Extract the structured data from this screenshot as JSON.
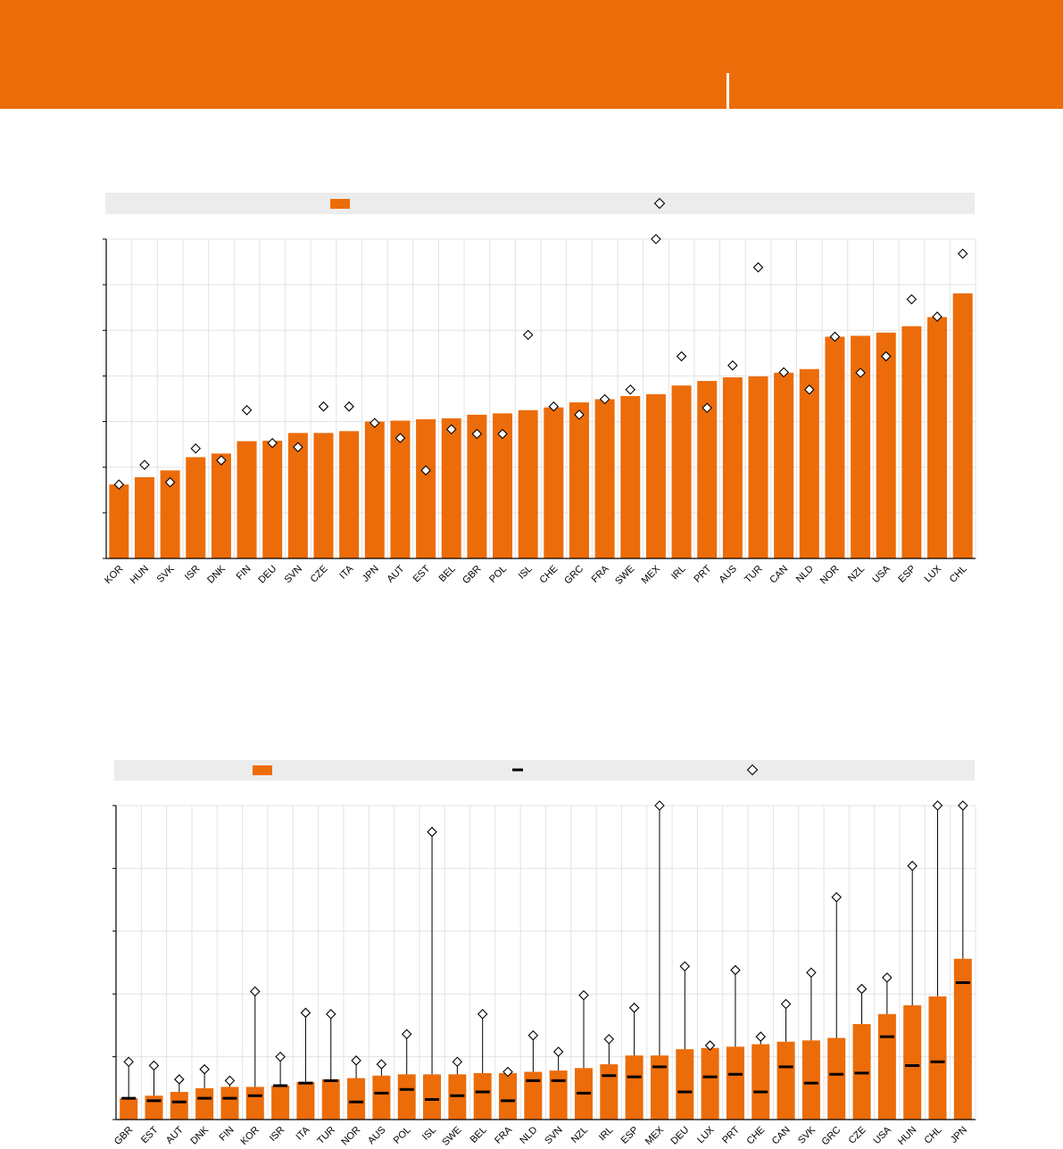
{
  "colors": {
    "accent": "#ec6c0a",
    "legend_background": "#ececec",
    "axis": "#000000",
    "marker_fill": "#ffffff"
  },
  "chart_data": [
    {
      "type": "bar",
      "title": "",
      "xlabel": "",
      "ylabel": "",
      "ylim": [
        0,
        7
      ],
      "grid": true,
      "legend": "top",
      "categories": [
        "KOR",
        "HUN",
        "SVK",
        "ISR",
        "DNK",
        "FIN",
        "DEU",
        "SVN",
        "CZE",
        "ITA",
        "JPN",
        "AUT",
        "EST",
        "BEL",
        "GBR",
        "POL",
        "ISL",
        "CHE",
        "GRC",
        "FRA",
        "SWE",
        "MEX",
        "IRL",
        "PRT",
        "AUS",
        "TUR",
        "CAN",
        "NLD",
        "NOR",
        "NZL",
        "USA",
        "ESP",
        "LUX",
        "CHL"
      ],
      "series": [
        {
          "marker": "bar",
          "values": [
            1.62,
            1.78,
            1.93,
            2.22,
            2.3,
            2.57,
            2.58,
            2.75,
            2.75,
            2.79,
            3.0,
            3.02,
            3.05,
            3.07,
            3.15,
            3.18,
            3.25,
            3.31,
            3.42,
            3.49,
            3.56,
            3.6,
            3.79,
            3.89,
            3.97,
            3.99,
            4.07,
            4.15,
            4.86,
            4.88,
            4.95,
            5.09,
            5.29,
            5.81
          ]
        },
        {
          "marker": "diamond",
          "values": [
            1.62,
            2.05,
            1.67,
            2.41,
            2.15,
            3.25,
            2.53,
            2.44,
            3.33,
            3.33,
            2.97,
            2.64,
            1.93,
            2.83,
            2.73,
            2.73,
            4.9,
            3.33,
            3.15,
            3.49,
            3.7,
            7.0,
            4.43,
            3.3,
            4.23,
            6.38,
            4.08,
            3.7,
            4.86,
            4.07,
            4.43,
            5.68,
            5.3,
            6.68
          ]
        }
      ]
    },
    {
      "type": "bar",
      "title": "",
      "xlabel": "",
      "ylabel": "",
      "ylim": [
        0,
        25
      ],
      "grid": true,
      "legend": "top",
      "categories": [
        "GBR",
        "EST",
        "AUT",
        "DNK",
        "FIN",
        "KOR",
        "ISR",
        "ITA",
        "TUR",
        "NOR",
        "AUS",
        "POL",
        "ISL",
        "SWE",
        "BEL",
        "FRA",
        "NLD",
        "SVN",
        "NZL",
        "IRL",
        "ESP",
        "MEX",
        "DEU",
        "LUX",
        "PRT",
        "CHE",
        "CAN",
        "SVK",
        "GRC",
        "CZE",
        "USA",
        "HUN",
        "CHL",
        "JPN"
      ],
      "series": [
        {
          "marker": "bar",
          "values": [
            1.7,
            1.9,
            2.2,
            2.5,
            2.6,
            2.6,
            2.7,
            3.0,
            3.2,
            3.3,
            3.5,
            3.6,
            3.6,
            3.6,
            3.7,
            3.7,
            3.8,
            3.9,
            4.1,
            4.4,
            5.1,
            5.1,
            5.6,
            5.7,
            5.8,
            6.0,
            6.2,
            6.3,
            6.5,
            7.6,
            8.4,
            9.1,
            9.8,
            12.8
          ]
        },
        {
          "marker": "dash",
          "values": [
            1.7,
            1.5,
            1.4,
            1.7,
            1.7,
            1.9,
            2.7,
            2.9,
            3.1,
            1.4,
            2.1,
            2.4,
            1.6,
            1.9,
            2.2,
            1.5,
            3.1,
            3.1,
            2.1,
            3.5,
            3.4,
            4.2,
            2.2,
            3.4,
            3.6,
            2.2,
            4.2,
            2.9,
            3.6,
            3.7,
            6.6,
            4.3,
            4.6,
            10.9
          ]
        },
        {
          "marker": "diamond",
          "values": [
            4.6,
            4.3,
            3.2,
            4.0,
            3.1,
            10.2,
            5.0,
            8.5,
            8.4,
            4.7,
            4.4,
            6.8,
            22.9,
            4.6,
            8.4,
            3.8,
            6.7,
            5.4,
            9.9,
            6.4,
            8.9,
            25.0,
            12.2,
            5.9,
            11.9,
            6.6,
            9.2,
            11.7,
            17.7,
            10.4,
            11.3,
            20.2,
            25.0,
            25.0
          ]
        }
      ]
    }
  ]
}
